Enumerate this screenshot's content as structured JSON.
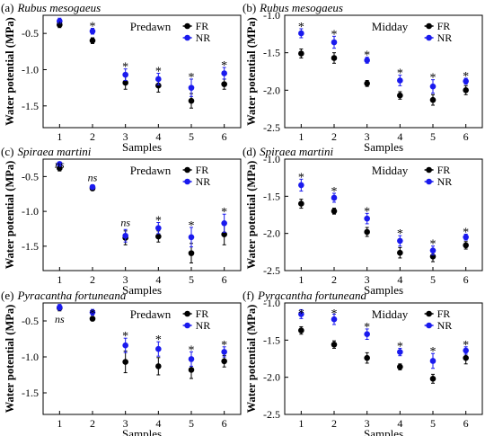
{
  "colors": {
    "FR": "#000000",
    "NR": "#1a1aee",
    "axis": "#000000"
  },
  "chart_data": [
    {
      "type": "scatter",
      "label": "(a)",
      "title": "Rubus mesogaeus",
      "condition": "Predawn",
      "xlabel": "Samples",
      "ylabel": "Water potential (MPa)",
      "x": [
        1,
        2,
        3,
        4,
        5,
        6
      ],
      "xlim": [
        0.5,
        6.5
      ],
      "ylim": [
        -1.8,
        -0.25
      ],
      "yticks": [
        -0.5,
        -1.0,
        -1.5
      ],
      "yticklabels": [
        "-0.5",
        "-1.0",
        "-1.5"
      ],
      "legend_position": "top-right",
      "series": [
        {
          "name": "FR",
          "values": [
            -0.38,
            -0.6,
            -1.18,
            -1.22,
            -1.43,
            -1.2
          ],
          "errors": [
            0.04,
            0.04,
            0.09,
            0.09,
            0.1,
            0.07
          ]
        },
        {
          "name": "NR",
          "values": [
            -0.33,
            -0.47,
            -1.07,
            -1.13,
            -1.25,
            -1.05
          ],
          "errors": [
            0.04,
            0.04,
            0.08,
            0.08,
            0.12,
            0.08
          ]
        }
      ],
      "annotations": [
        "*",
        "*",
        "*",
        "*",
        "*",
        "*"
      ]
    },
    {
      "type": "scatter",
      "label": "(b)",
      "title": "Rubus mesogaeus",
      "condition": "Midday",
      "xlabel": "Samples",
      "ylabel": "Water potential (MPa)",
      "x": [
        1,
        2,
        3,
        4,
        5,
        6
      ],
      "xlim": [
        0.5,
        6.5
      ],
      "ylim": [
        -2.5,
        -1.0
      ],
      "yticks": [
        -1.0,
        -1.5,
        -2.0,
        -2.5
      ],
      "yticklabels": [
        "-1.0",
        "-1.5",
        "-2.0",
        "-2.5"
      ],
      "legend_position": "top-right",
      "series": [
        {
          "name": "FR",
          "values": [
            -1.51,
            -1.57,
            -1.91,
            -2.07,
            -2.13,
            -2.0
          ],
          "errors": [
            0.06,
            0.07,
            0.04,
            0.05,
            0.07,
            0.06
          ]
        },
        {
          "name": "NR",
          "values": [
            -1.24,
            -1.36,
            -1.6,
            -1.87,
            -1.95,
            -1.88
          ],
          "errors": [
            0.06,
            0.08,
            0.04,
            0.07,
            0.09,
            0.04
          ]
        }
      ],
      "annotations": [
        "*",
        "*",
        "*",
        "*",
        "*",
        "*"
      ]
    },
    {
      "type": "scatter",
      "label": "(c)",
      "title": "Spiraea martini",
      "condition": "Predawn",
      "xlabel": "Samples",
      "ylabel": "Water potential (MPa)",
      "x": [
        1,
        2,
        3,
        4,
        5,
        6
      ],
      "xlim": [
        0.5,
        6.5
      ],
      "ylim": [
        -1.85,
        -0.25
      ],
      "yticks": [
        -0.5,
        -1.0,
        -1.5
      ],
      "yticklabels": [
        "-0.5",
        "-1.0",
        "-1.5"
      ],
      "legend_position": "top-right",
      "series": [
        {
          "name": "FR",
          "values": [
            -0.38,
            -0.67,
            -1.38,
            -1.36,
            -1.6,
            -1.33
          ],
          "errors": [
            0.04,
            0.03,
            0.1,
            0.08,
            0.14,
            0.15
          ]
        },
        {
          "name": "NR",
          "values": [
            -0.32,
            -0.65,
            -1.35,
            -1.24,
            -1.37,
            -1.17
          ],
          "errors": [
            0.03,
            0.03,
            0.09,
            0.08,
            0.14,
            0.13
          ]
        }
      ],
      "annotations": [
        "ns",
        "ns",
        "ns",
        "*",
        "*",
        "*"
      ]
    },
    {
      "type": "scatter",
      "label": "(d)",
      "title": "Spiraea martini",
      "condition": "Midday",
      "xlabel": "Samples",
      "ylabel": "Water potential (MPa)",
      "x": [
        1,
        2,
        3,
        4,
        5,
        6
      ],
      "xlim": [
        0.5,
        6.5
      ],
      "ylim": [
        -2.5,
        -1.0
      ],
      "yticks": [
        -1.0,
        -1.5,
        -2.0,
        -2.5
      ],
      "yticklabels": [
        "-1.0",
        "-1.5",
        "-2.0",
        "-2.5"
      ],
      "legend_position": "top-right",
      "series": [
        {
          "name": "FR",
          "values": [
            -1.6,
            -1.7,
            -1.98,
            -2.26,
            -2.31,
            -2.16
          ],
          "errors": [
            0.06,
            0.04,
            0.06,
            0.07,
            0.07,
            0.05
          ]
        },
        {
          "name": "NR",
          "values": [
            -1.35,
            -1.52,
            -1.8,
            -2.1,
            -2.23,
            -2.05
          ],
          "errors": [
            0.08,
            0.06,
            0.07,
            0.07,
            0.06,
            0.04
          ]
        }
      ],
      "annotations": [
        "*",
        "*",
        "*",
        "*",
        "*",
        "*"
      ]
    },
    {
      "type": "scatter",
      "label": "(e)",
      "title": "Pyracantha fortuneana",
      "condition": "Predawn",
      "xlabel": "Samples",
      "ylabel": "Water potential (MPa)",
      "x": [
        1,
        2,
        3,
        4,
        5,
        6
      ],
      "xlim": [
        0.5,
        6.5
      ],
      "ylim": [
        -1.8,
        -0.25
      ],
      "yticks": [
        -0.5,
        -1.0,
        -1.5
      ],
      "yticklabels": [
        "-0.5",
        "-1.0",
        "-1.5"
      ],
      "legend_position": "top-right",
      "series": [
        {
          "name": "FR",
          "values": [
            -0.32,
            -0.47,
            -1.07,
            -1.13,
            -1.18,
            -1.06
          ],
          "errors": [
            0.04,
            0.03,
            0.15,
            0.12,
            0.12,
            0.08
          ]
        },
        {
          "name": "NR",
          "values": [
            -0.31,
            -0.38,
            -0.84,
            -0.89,
            -1.03,
            -0.93
          ],
          "errors": [
            0.04,
            0.04,
            0.1,
            0.1,
            0.1,
            0.07
          ]
        }
      ],
      "annotations": [
        "ns",
        "*",
        "*",
        "*",
        "*",
        "*"
      ]
    },
    {
      "type": "scatter",
      "label": "(f)",
      "title": "Pyracantha fortuneana",
      "condition": "Midday",
      "xlabel": "Samples",
      "ylabel": "Water potential (MPa)",
      "x": [
        1,
        2,
        3,
        4,
        5,
        6
      ],
      "xlim": [
        0.5,
        6.5
      ],
      "ylim": [
        -2.5,
        -1.0
      ],
      "yticks": [
        -1.0,
        -1.5,
        -2.0,
        -2.5
      ],
      "yticklabels": [
        "-1.0",
        "-1.5",
        "-2.0",
        "-2.5"
      ],
      "legend_position": "top-right",
      "series": [
        {
          "name": "FR",
          "values": [
            -1.37,
            -1.56,
            -1.74,
            -1.86,
            -2.02,
            -1.74
          ],
          "errors": [
            0.05,
            0.05,
            0.07,
            0.04,
            0.06,
            0.08
          ]
        },
        {
          "name": "NR",
          "values": [
            -1.15,
            -1.22,
            -1.42,
            -1.66,
            -1.78,
            -1.64
          ],
          "errors": [
            0.06,
            0.07,
            0.07,
            0.05,
            0.1,
            0.05
          ]
        }
      ],
      "annotations": [
        "*",
        "*",
        "*",
        "*",
        "*",
        "*"
      ]
    }
  ]
}
